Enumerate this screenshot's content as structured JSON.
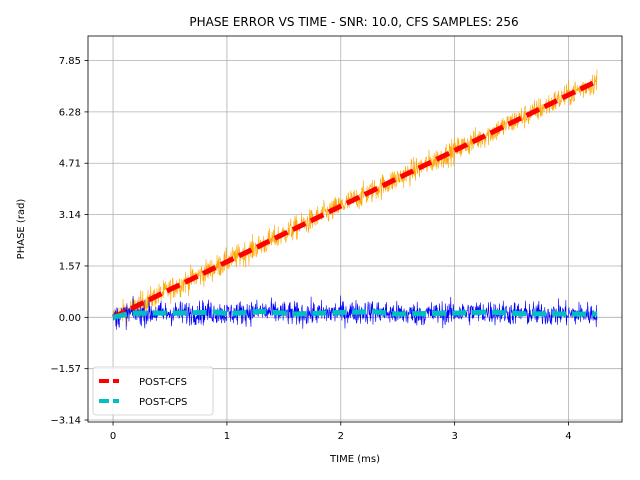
{
  "chart_data": {
    "type": "line",
    "title": "PHASE ERROR VS TIME - SNR: 10.0, CFS SAMPLES: 256",
    "xlabel": "TIME (ms)",
    "ylabel": "PHASE (rad)",
    "xlim": [
      -0.22,
      4.47
    ],
    "ylim": [
      -3.2,
      8.6
    ],
    "xticks": [
      0,
      1,
      2,
      3,
      4
    ],
    "xtick_labels": [
      "0",
      "1",
      "2",
      "3",
      "4"
    ],
    "yticks": [
      -3.14,
      -1.57,
      0.0,
      1.57,
      3.14,
      4.71,
      6.28,
      7.85
    ],
    "ytick_labels": [
      "−3.14",
      "−1.57",
      "0.00",
      "1.57",
      "3.14",
      "4.71",
      "6.28",
      "7.85"
    ],
    "grid": true,
    "legend": {
      "placement": "lower-left",
      "entries": [
        "POST-CFS",
        "POST-CPS"
      ]
    },
    "series": [
      {
        "name": "POST-CFS",
        "style": "dashed",
        "color": "#ff0000",
        "raw_color": "#ffa500",
        "noise_amplitude": 0.35,
        "x": [
          0.0,
          0.25,
          0.5,
          0.75,
          1.0,
          1.25,
          1.5,
          1.75,
          2.0,
          2.25,
          2.5,
          2.75,
          3.0,
          3.25,
          3.5,
          3.75,
          4.0,
          4.25
        ],
        "y": [
          0.0,
          0.42,
          0.85,
          1.27,
          1.7,
          2.12,
          2.55,
          2.97,
          3.4,
          3.82,
          4.25,
          4.67,
          5.1,
          5.52,
          5.95,
          6.37,
          6.8,
          7.22
        ]
      },
      {
        "name": "POST-CPS",
        "style": "dashed",
        "color": "#00bfbf",
        "raw_color": "#0000ff",
        "noise_amplitude": 0.35,
        "x": [
          0.0,
          0.15,
          0.3,
          0.6,
          0.9,
          1.0,
          1.3,
          1.6,
          2.0,
          2.3,
          2.5,
          3.0,
          3.3,
          3.6,
          4.0,
          4.25
        ],
        "y": [
          0.0,
          0.12,
          0.13,
          0.13,
          0.16,
          0.11,
          0.18,
          0.1,
          0.15,
          0.17,
          0.1,
          0.13,
          0.16,
          0.11,
          0.1,
          0.1
        ]
      }
    ]
  }
}
